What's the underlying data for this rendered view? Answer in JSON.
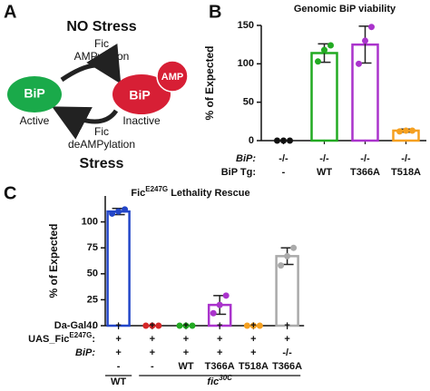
{
  "diagram": {
    "panel": "A",
    "top_label": "NO Stress",
    "top_enzyme": "Fic",
    "top_reaction": "AMPylation",
    "left_node": "BiP",
    "left_state": "Active",
    "right_node": "BiP",
    "right_tag": "AMP",
    "right_state": "Inactive",
    "bottom_enzyme": "Fic",
    "bottom_reaction": "deAMPylation",
    "bottom_label": "Stress"
  },
  "chart_data": [
    {
      "type": "bar",
      "panel": "B",
      "title": "Genomic BiP viability",
      "y_label": "% of Expected",
      "categories": [
        "-",
        "WT",
        "T366A",
        "T518A"
      ],
      "values": [
        0,
        114,
        125,
        13
      ],
      "errors": [
        null,
        12,
        24,
        2
      ],
      "points": [
        [
          0,
          0,
          0
        ],
        [
          103,
          118,
          124
        ],
        [
          100,
          130,
          148
        ],
        [
          12,
          13,
          13
        ]
      ],
      "colors": [
        "#111111",
        "#22aa22",
        "#aa33cc",
        "#f5a020"
      ],
      "ylim": [
        0,
        150
      ],
      "yticks": [
        0,
        50,
        100,
        150
      ],
      "rows": [
        {
          "label": "BiP:",
          "values": [
            "-/-",
            "-/-",
            "-/-",
            "-/-"
          ]
        },
        {
          "label": "BiP Tg:",
          "values": [
            "-",
            "WT",
            "T366A",
            "T518A"
          ]
        }
      ],
      "group_labels": []
    },
    {
      "type": "bar",
      "panel": "C",
      "title": [
        "Fic",
        "E247G",
        " Lethality Rescue"
      ],
      "y_label": "% of Expected",
      "categories": [
        "-",
        "-",
        "WT",
        "T366A",
        "T518A",
        "T366A"
      ],
      "values": [
        110,
        0,
        0,
        20,
        0,
        67
      ],
      "errors": [
        3,
        null,
        null,
        9,
        null,
        8
      ],
      "points": [
        [
          108,
          110,
          112
        ],
        [
          0,
          0,
          0
        ],
        [
          0,
          0,
          0
        ],
        [
          12,
          20,
          29
        ],
        [
          0,
          0,
          0
        ],
        [
          58,
          67,
          75
        ]
      ],
      "colors": [
        "#2346c8",
        "#d62728",
        "#22aa22",
        "#aa33cc",
        "#f5a020",
        "#aaaaaa"
      ],
      "ylim": [
        0,
        125
      ],
      "yticks": [
        0,
        25,
        50,
        75,
        100
      ],
      "rows": [
        {
          "label": "Da-Gal4:",
          "values": [
            "+",
            "+",
            "+",
            "+",
            "+",
            "+"
          ]
        },
        {
          "label": [
            "UAS_Fic",
            "E247G",
            ":"
          ],
          "values": [
            "+",
            "+",
            "+",
            "+",
            "+",
            "+"
          ]
        },
        {
          "label": "BiP:",
          "values": [
            "+",
            "+",
            "+",
            "+",
            "+",
            "-/-"
          ]
        }
      ],
      "group_labels": [
        "WT",
        [
          "fic",
          "30C"
        ]
      ]
    }
  ]
}
